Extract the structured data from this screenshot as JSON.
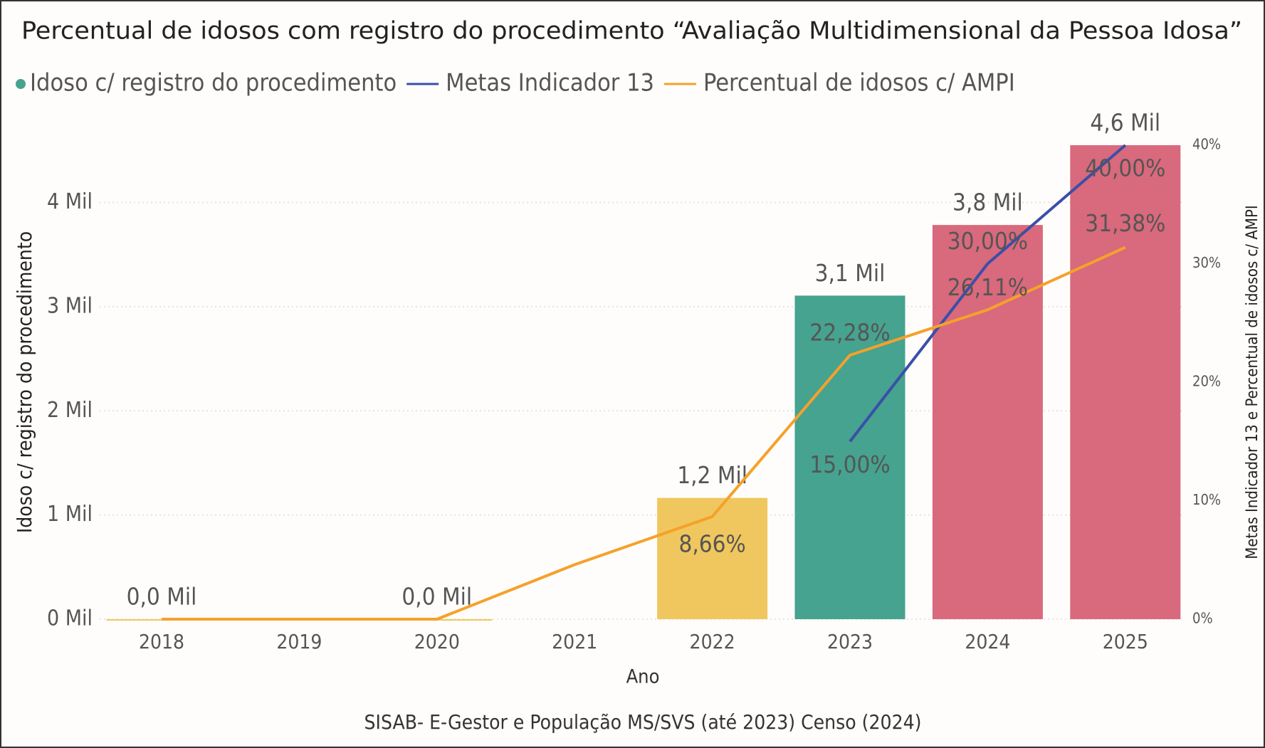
{
  "chart_data": {
    "type": "bar-line",
    "title": "Percentual de idosos com registro do procedimento “Avaliação Multidimensional da Pessoa Idosa”",
    "source": "SISAB- E-Gestor e População MS/SVS (até 2023) Censo (2024)",
    "x_label": "Ano",
    "y_label": "Idoso c/ registro do procedimento",
    "y2_label": "Metas Indicador 13 e Percentual de idosos c/ AMPI",
    "categories": [
      "2018",
      "2019",
      "2020",
      "2021",
      "2022",
      "2023",
      "2024",
      "2025"
    ],
    "ylim": [
      0,
      4550
    ],
    "yticks": [
      {
        "value": 0,
        "label": "0 Mil"
      },
      {
        "value": 1000,
        "label": "1 Mil"
      },
      {
        "value": 2000,
        "label": "2 Mil"
      },
      {
        "value": 3000,
        "label": "3 Mil"
      },
      {
        "value": 4000,
        "label": "4 Mil"
      }
    ],
    "y2lim": [
      0,
      40
    ],
    "y2ticks": [
      {
        "value": 0,
        "label": "0%"
      },
      {
        "value": 10,
        "label": "10%"
      },
      {
        "value": 20,
        "label": "20%"
      },
      {
        "value": 30,
        "label": "30%"
      },
      {
        "value": 40,
        "label": "40%"
      }
    ],
    "grid": true,
    "series": [
      {
        "name": "Idoso c/ registro do procedimento",
        "kind": "bar",
        "color": "#45a38f",
        "colors": [
          "#f0c75e",
          "#f0c75e",
          "#f0c75e",
          "#f0c75e",
          "#f0c75e",
          "#45a38f",
          "#d9697c",
          "#d9697c"
        ],
        "values": [
          0,
          null,
          0,
          null,
          1164,
          3106,
          3784,
          4550
        ],
        "value_labels": [
          "0,0 Mil",
          null,
          "0,0 Mil",
          null,
          "1,2 Mil",
          "3,1 Mil",
          "3,8 Mil",
          "4,6 Mil"
        ]
      },
      {
        "name": "Metas Indicador 13",
        "kind": "line",
        "axis": "y2",
        "color": "#3a4fa8",
        "values": [
          null,
          null,
          null,
          null,
          null,
          15,
          30,
          40
        ],
        "value_labels": [
          null,
          null,
          null,
          null,
          null,
          "15,00%",
          "30,00%",
          "40,00%"
        ]
      },
      {
        "name": "Percentual de idosos c/ AMPI",
        "kind": "line",
        "axis": "y2",
        "color": "#f5a12a",
        "values": [
          0,
          0,
          0,
          4.6,
          8.66,
          22.28,
          26.11,
          31.38
        ],
        "value_labels": [
          null,
          null,
          null,
          null,
          "8,66%",
          "22,28%",
          "26,11%",
          "31,38%"
        ]
      }
    ]
  }
}
